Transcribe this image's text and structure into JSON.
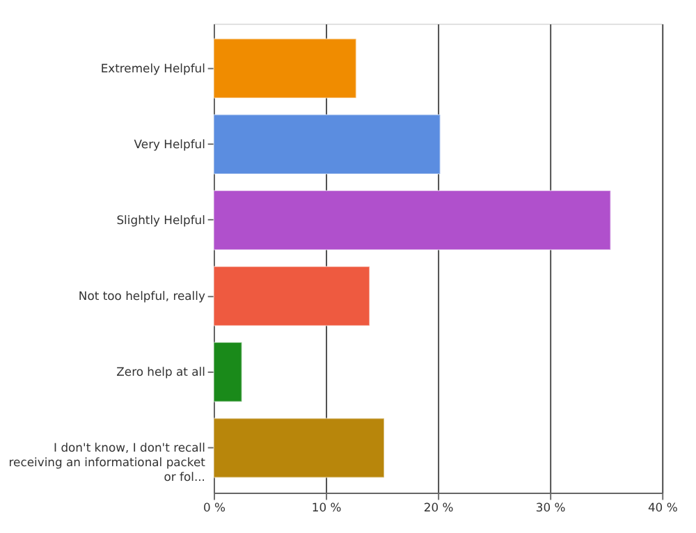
{
  "chart_data": {
    "type": "bar",
    "orientation": "horizontal",
    "categories": [
      "Extremely Helpful",
      "Very Helpful",
      "Slightly Helpful",
      "Not too helpful, really",
      "Zero help at all",
      "I don't know, I don't recall receiving an informational packet or fol..."
    ],
    "values": [
      12.7,
      20.2,
      35.4,
      13.9,
      2.5,
      15.2
    ],
    "colors": [
      "#f08c00",
      "#5b8de0",
      "#b050cc",
      "#ee5a40",
      "#1a8a1a",
      "#b8860b"
    ],
    "xlim": [
      0,
      40
    ],
    "xticks": [
      {
        "value": 0,
        "label": "0 %"
      },
      {
        "value": 10,
        "label": "10 %"
      },
      {
        "value": 20,
        "label": "20 %"
      },
      {
        "value": 30,
        "label": "30 %"
      },
      {
        "value": 40,
        "label": "40 %"
      }
    ],
    "grid": "x"
  }
}
